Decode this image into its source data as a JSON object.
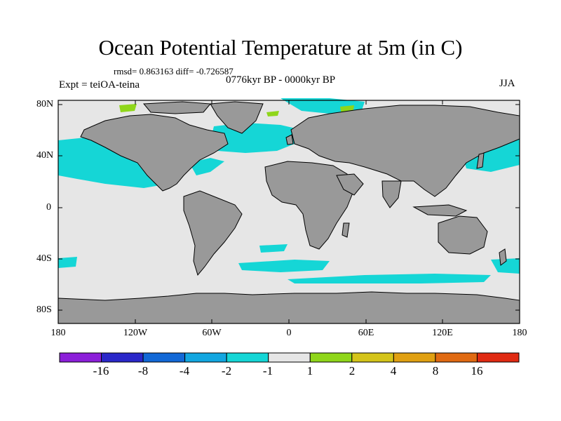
{
  "title": "Ocean Potential Temperature at 5m (in C)",
  "stats": "rmsd= 0.863163  diff= -0.726587",
  "left_label": "Expt = teiOA-teina",
  "center_label": "0776kyr BP - 0000kyr BP",
  "right_label": "JJA",
  "y_ticks": [
    "80N",
    "40N",
    "0",
    "40S",
    "80S"
  ],
  "x_ticks": [
    "180",
    "120W",
    "60W",
    "0",
    "60E",
    "120E",
    "180"
  ],
  "colorbar": {
    "colors": [
      "#8c1fd9",
      "#2a27c9",
      "#1268d6",
      "#12a6e0",
      "#15d6d6",
      "#e6e6e6",
      "#8fd61a",
      "#d4c41a",
      "#e0a012",
      "#e06a12",
      "#e02a12"
    ],
    "labels": [
      "-16",
      "-8",
      "-4",
      "-2",
      "-1",
      "1",
      "2",
      "4",
      "8",
      "16"
    ]
  },
  "colors": {
    "land": "#999999",
    "ocean": "#e6e6e6",
    "cool": "#15d6d6",
    "cooler": "#12a6e0",
    "warm": "#8fd61a"
  }
}
